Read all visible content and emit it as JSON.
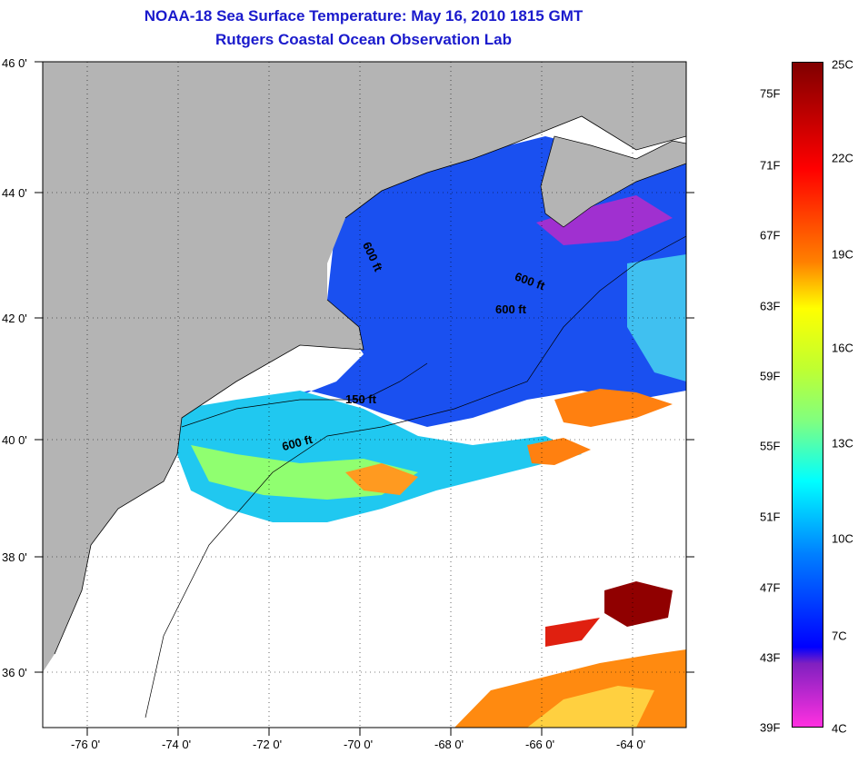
{
  "title": {
    "line1": "NOAA-18 Sea Surface Temperature:  May 16, 2010 1815 GMT",
    "line2": "Rutgers Coastal Ocean Observation Lab"
  },
  "map": {
    "lon_labels": [
      "-76 0'",
      "-74 0'",
      "-72 0'",
      "-70 0'",
      "-68 0'",
      "-66 0'",
      "-64 0'"
    ],
    "lat_labels": [
      "46 0'",
      "44 0'",
      "42 0'",
      "40 0'",
      "38 0'",
      "36 0'"
    ],
    "contour_labels": [
      "600 ft",
      "600 ft",
      "600 ft",
      "150 ft",
      "600 ft"
    ],
    "colors": {
      "land": "#b4b4b4",
      "ocean_nodata": "#ffffff"
    }
  },
  "colorbar": {
    "fahrenheit": [
      "75F",
      "71F",
      "67F",
      "63F",
      "59F",
      "55F",
      "51F",
      "47F",
      "43F",
      "39F"
    ],
    "celsius": [
      "25C",
      "22C",
      "19C",
      "16C",
      "13C",
      "10C",
      "7C",
      "4C"
    ]
  }
}
